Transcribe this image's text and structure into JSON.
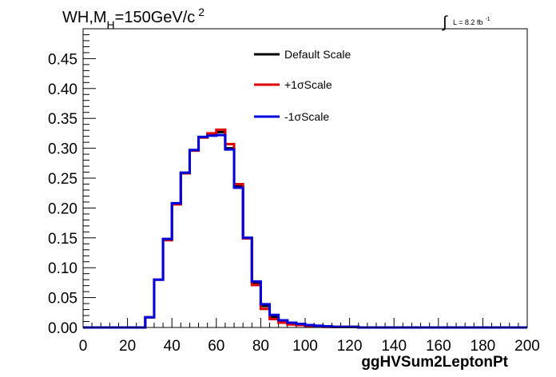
{
  "chart_data": {
    "type": "line",
    "title_main": "WH,M",
    "title_sub": "H",
    "title_rest": "=150GeV/c",
    "title_sup": "2",
    "lumi_label": "L = 8.2 fb",
    "lumi_sup": "-1",
    "xlabel": "ggHVSum2LeptonPt",
    "xlim": [
      0,
      200
    ],
    "ylim": [
      0,
      0.5
    ],
    "x_ticks": [
      "0",
      "20",
      "40",
      "60",
      "80",
      "100",
      "120",
      "140",
      "160",
      "180",
      "200"
    ],
    "y_ticks": [
      "0.00",
      "0.05",
      "0.10",
      "0.15",
      "0.20",
      "0.25",
      "0.30",
      "0.35",
      "0.40",
      "0.45"
    ],
    "legend_position": "top-center",
    "bin_edges": [
      0,
      4,
      8,
      12,
      16,
      20,
      24,
      28,
      32,
      36,
      40,
      44,
      48,
      52,
      56,
      60,
      64,
      68,
      72,
      76,
      80,
      84,
      88,
      92,
      96,
      100,
      104,
      108,
      112,
      116,
      120,
      124,
      128,
      132,
      136,
      140,
      144,
      148,
      152,
      156,
      160,
      164,
      168,
      172,
      176,
      180,
      184,
      188,
      192,
      196,
      200
    ],
    "series": [
      {
        "name": "Default Scale",
        "color": "#000000",
        "values": [
          0,
          0,
          0,
          0,
          0,
          0,
          0,
          0.017,
          0.08,
          0.148,
          0.207,
          0.259,
          0.297,
          0.318,
          0.322,
          0.327,
          0.3,
          0.236,
          0.15,
          0.075,
          0.036,
          0.018,
          0.01,
          0.007,
          0.005,
          0.003,
          0.002,
          0.002,
          0.001,
          0.001,
          0.001,
          0,
          0,
          0,
          0,
          0,
          0,
          0,
          0,
          0,
          0,
          0,
          0,
          0,
          0,
          0,
          0,
          0,
          0,
          0
        ]
      },
      {
        "name": "+1σScale",
        "color": "#e00000",
        "values": [
          0,
          0,
          0,
          0,
          0,
          0,
          0,
          0.017,
          0.08,
          0.146,
          0.206,
          0.258,
          0.296,
          0.318,
          0.325,
          0.331,
          0.307,
          0.24,
          0.149,
          0.071,
          0.031,
          0.014,
          0.008,
          0.005,
          0.004,
          0.002,
          0.002,
          0.001,
          0.001,
          0.001,
          0.001,
          0,
          0,
          0,
          0,
          0,
          0,
          0,
          0,
          0,
          0,
          0,
          0,
          0,
          0,
          0,
          0,
          0,
          0,
          0
        ]
      },
      {
        "name": "-1σScale",
        "color": "#0000dd",
        "values": [
          0,
          0,
          0,
          0,
          0,
          0,
          0,
          0.017,
          0.08,
          0.148,
          0.208,
          0.259,
          0.297,
          0.319,
          0.321,
          0.322,
          0.298,
          0.234,
          0.15,
          0.077,
          0.039,
          0.021,
          0.012,
          0.008,
          0.006,
          0.004,
          0.003,
          0.002,
          0.001,
          0.001,
          0.001,
          0,
          0,
          0,
          0,
          0,
          0,
          0,
          0,
          0,
          0,
          0,
          0,
          0,
          0,
          0,
          0,
          0,
          0,
          0
        ]
      }
    ]
  }
}
